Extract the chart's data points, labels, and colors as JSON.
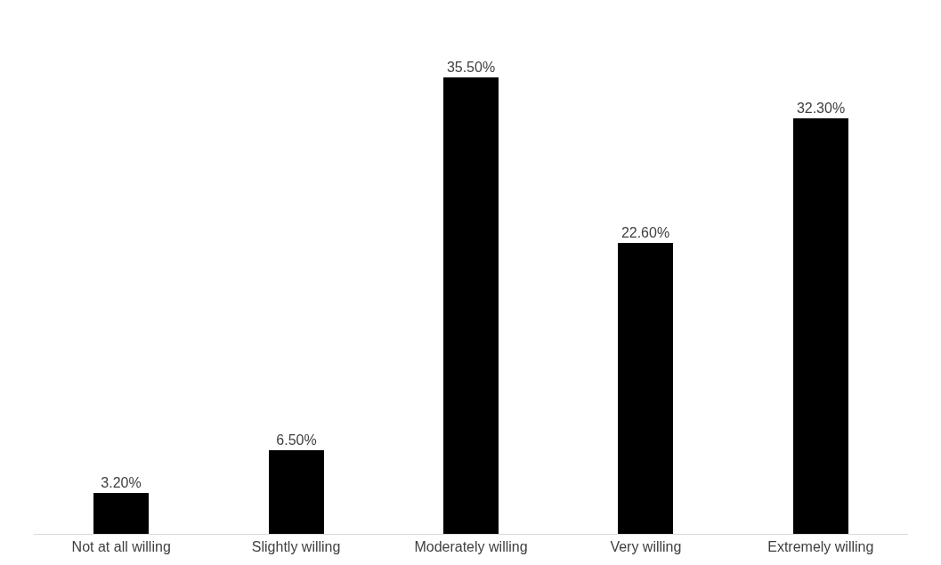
{
  "chart_data": {
    "type": "bar",
    "categories": [
      "Not at all willing",
      "Slightly willing",
      "Moderately willing",
      "Very willing",
      "Extremely willing"
    ],
    "values": [
      3.2,
      6.5,
      35.5,
      22.6,
      32.3
    ],
    "value_labels": [
      "3.20%",
      "6.50%",
      "35.50%",
      "22.60%",
      "32.30%"
    ],
    "color": "#000000"
  }
}
